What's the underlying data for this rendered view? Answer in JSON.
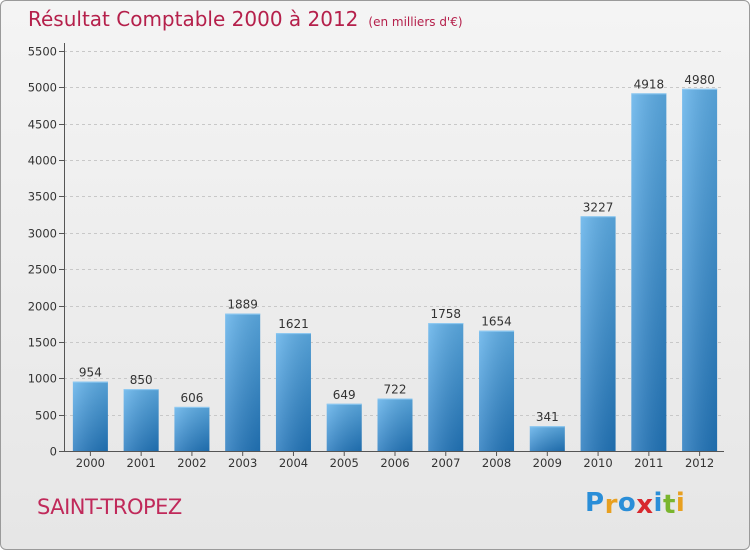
{
  "title": "Résultat Comptable 2000 à 2012",
  "unit_note": "(en milliers d'€)",
  "commune": "SAINT-TROPEZ",
  "logo": {
    "letters": [
      "P",
      "r",
      "o",
      "x",
      "i",
      "t",
      "i"
    ],
    "colors": [
      "#2a8ed8",
      "#e8a020",
      "#2a8ed8",
      "#d8282e",
      "#2a8ed8",
      "#7ab52e",
      "#e8a020"
    ]
  },
  "colors": {
    "title": "#b5204b",
    "bar_top": "#5eb0ea",
    "bar_bottom": "#2277bd"
  },
  "chart_data": {
    "type": "bar",
    "title": "Résultat Comptable 2000 à 2012",
    "xlabel": "",
    "ylabel": "",
    "categories": [
      "2000",
      "2001",
      "2002",
      "2003",
      "2004",
      "2005",
      "2006",
      "2007",
      "2008",
      "2009",
      "2010",
      "2011",
      "2012"
    ],
    "values": [
      954,
      850,
      606,
      1889,
      1621,
      649,
      722,
      1758,
      1654,
      341,
      3227,
      4918,
      4980
    ],
    "ylim": [
      0,
      5500
    ],
    "yticks": [
      0,
      500,
      1000,
      1500,
      2000,
      2500,
      3000,
      3500,
      4000,
      4500,
      5000,
      5500
    ],
    "grid": true,
    "data_labels": true
  }
}
